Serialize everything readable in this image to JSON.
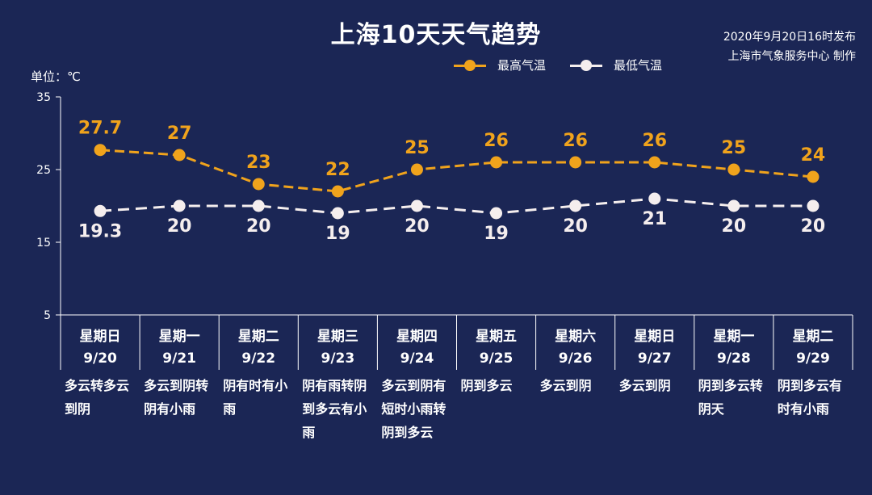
{
  "title": "上海10天天气趋势",
  "issuer": {
    "line1": "2020年9月20日16时发布",
    "line2": "上海市气象服务中心 制作"
  },
  "unit": "单位：℃",
  "colors": {
    "background": "#1b2655",
    "high": "#f0a31c",
    "low": "#f5eeee",
    "axis": "#ffffff"
  },
  "chart_data": {
    "type": "line",
    "title": "上海10天天气趋势",
    "ylabel": "单位：℃",
    "ylim": [
      5,
      35
    ],
    "yticks": [
      5,
      15,
      25,
      35
    ],
    "legend_position": "top-right",
    "categories": [
      {
        "weekday": "星期日",
        "date": "9/20",
        "weather": "多云转多云到阴"
      },
      {
        "weekday": "星期一",
        "date": "9/21",
        "weather": "多云到阴转阴有小雨"
      },
      {
        "weekday": "星期二",
        "date": "9/22",
        "weather": "阴有时有小雨"
      },
      {
        "weekday": "星期三",
        "date": "9/23",
        "weather": "阴有雨转阴到多云有小雨"
      },
      {
        "weekday": "星期四",
        "date": "9/24",
        "weather": "多云到阴有短时小雨转阴到多云"
      },
      {
        "weekday": "星期五",
        "date": "9/25",
        "weather": "阴到多云"
      },
      {
        "weekday": "星期六",
        "date": "9/26",
        "weather": "多云到阴"
      },
      {
        "weekday": "星期日",
        "date": "9/27",
        "weather": "多云到阴"
      },
      {
        "weekday": "星期一",
        "date": "9/28",
        "weather": "阴到多云转阴天"
      },
      {
        "weekday": "星期二",
        "date": "9/29",
        "weather": "阴到多云有时有小雨"
      }
    ],
    "series": [
      {
        "name": "最高气温",
        "values": [
          27.7,
          27,
          23,
          22,
          25,
          26,
          26,
          26,
          25,
          24
        ],
        "labels": [
          "27.7",
          "27",
          "23",
          "22",
          "25",
          "26",
          "26",
          "26",
          "25",
          "24"
        ]
      },
      {
        "name": "最低气温",
        "values": [
          19.3,
          20,
          20,
          19,
          20,
          19,
          20,
          21,
          20,
          20
        ],
        "labels": [
          "19.3",
          "20",
          "20",
          "19",
          "20",
          "19",
          "20",
          "21",
          "20",
          "20"
        ]
      }
    ]
  }
}
